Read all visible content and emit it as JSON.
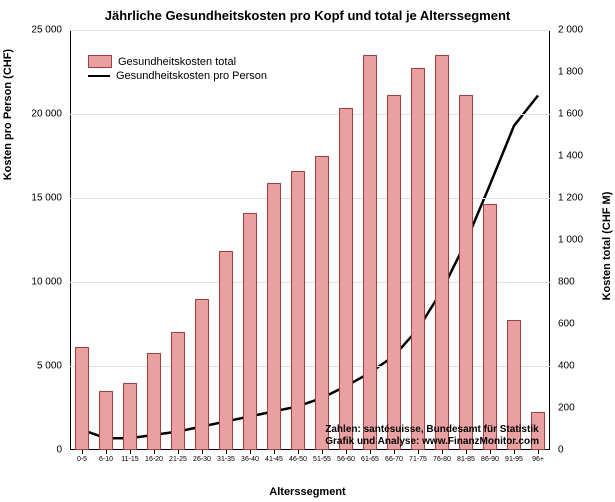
{
  "title": "Jährliche Gesundheitskosten pro Kopf und total je Alterssegment",
  "x_label": "Alterssegment",
  "y_left_label": "Kosten pro Person (CHF)",
  "y_right_label": "Kosten total (CHF M)",
  "legend": {
    "bar_label": "Gesundheitskosten total",
    "line_label": "Gesundheitskosten pro Person"
  },
  "footnote_line1": "Zahlen: santésuisse, Bundesamt für Statistik",
  "footnote_line2": "Grafik und Analyse: www.FinanzMonitor.com",
  "y_left": {
    "min": 0,
    "max": 25000,
    "ticks": [
      0,
      5000,
      10000,
      15000,
      20000,
      25000
    ]
  },
  "y_right": {
    "min": 0,
    "max": 2000,
    "ticks": [
      0,
      200,
      400,
      600,
      800,
      1000,
      1200,
      1400,
      1600,
      1800,
      2000
    ]
  },
  "categories": [
    "0-5",
    "6-10",
    "11-15",
    "16-20",
    "21-25",
    "26-30",
    "31-35",
    "36-40",
    "41-45",
    "46-50",
    "51-55",
    "56-60",
    "61-65",
    "66-70",
    "71-75",
    "76-80",
    "81-85",
    "86-90",
    "91-95",
    "96+"
  ],
  "bar_values_right": [
    490,
    280,
    320,
    460,
    560,
    720,
    950,
    1130,
    1270,
    1330,
    1400,
    1630,
    1880,
    1690,
    1820,
    1880,
    1690,
    1170,
    620,
    180
  ],
  "line_values_left": [
    1200,
    700,
    700,
    900,
    1100,
    1400,
    1700,
    2000,
    2300,
    2600,
    3100,
    3800,
    4600,
    5600,
    7200,
    9500,
    12400,
    15800,
    19300,
    21100
  ],
  "colors": {
    "bar_fill": "#e9a0a0",
    "bar_border": "#a04040",
    "line": "#000000",
    "grid": "#e0e0e0",
    "background": "#ffffff"
  },
  "bar_width_ratio": 0.6
}
